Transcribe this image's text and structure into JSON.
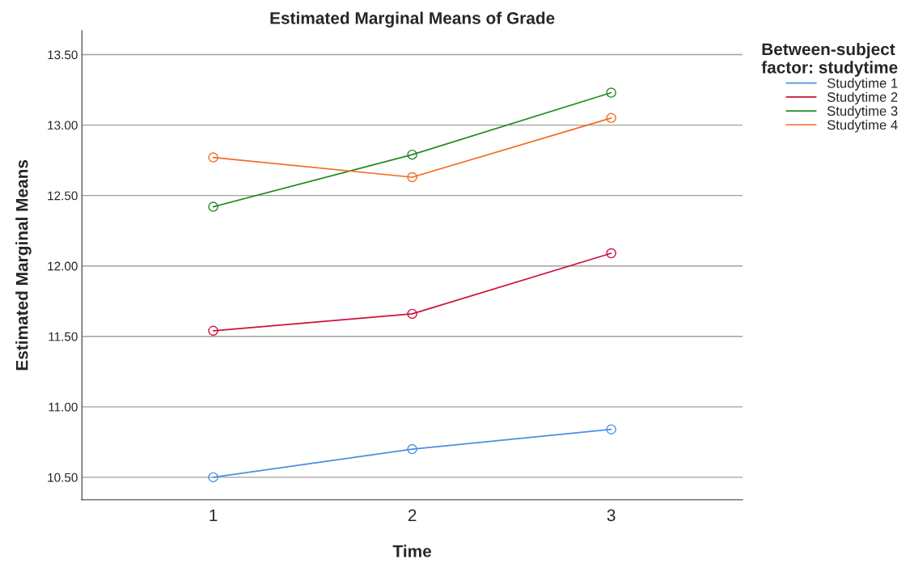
{
  "chart_data": {
    "type": "line",
    "title": "Estimated Marginal Means of Grade",
    "xlabel": "Time",
    "ylabel": "Estimated Marginal Means",
    "legend_title": "Between-subject\nfactor: studytime",
    "categories": [
      "1",
      "2",
      "3"
    ],
    "series": [
      {
        "name": "Studytime 1",
        "color": "#4a90e2",
        "values": [
          10.5,
          10.7,
          10.84
        ]
      },
      {
        "name": "Studytime 2",
        "color": "#d0103a",
        "values": [
          11.54,
          11.66,
          12.09
        ]
      },
      {
        "name": "Studytime 3",
        "color": "#238b21",
        "values": [
          12.42,
          12.79,
          13.23
        ]
      },
      {
        "name": "Studytime 4",
        "color": "#f26b21",
        "values": [
          12.77,
          12.63,
          13.05
        ]
      }
    ],
    "ylim": [
      10.34,
      13.67
    ],
    "yticks": [
      {
        "value": 10.5,
        "label": "10.50"
      },
      {
        "value": 11,
        "label": "11.00"
      },
      {
        "value": 11.5,
        "label": "11.50"
      },
      {
        "value": 12,
        "label": "12.00"
      },
      {
        "value": 12.5,
        "label": "12.50"
      },
      {
        "value": 13,
        "label": "13.00"
      },
      {
        "value": 13.5,
        "label": "13.50"
      }
    ],
    "grid": "y",
    "legend": "top right",
    "marker": "circle",
    "line_style": "solid"
  }
}
